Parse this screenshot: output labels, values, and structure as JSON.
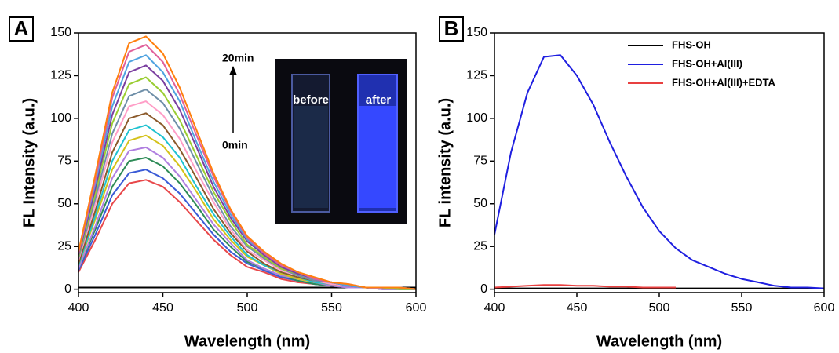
{
  "chart_data": [
    {
      "type": "line",
      "panel_label": "A",
      "xlabel": "Wavelength (nm)",
      "ylabel": "FL Intensity (a.u.)",
      "x": [
        400,
        410,
        420,
        430,
        440,
        450,
        460,
        470,
        480,
        490,
        500,
        510,
        520,
        530,
        540,
        550,
        560,
        570,
        580,
        590,
        600
      ],
      "xlim": [
        400,
        600
      ],
      "xticks": [
        400,
        450,
        500,
        550,
        600
      ],
      "ylim": [
        -2,
        150
      ],
      "yticks": [
        0,
        25,
        50,
        75,
        100,
        125,
        150
      ],
      "annotations": {
        "top": "20min",
        "bottom": "0min"
      },
      "inset_labels": [
        "before",
        "after"
      ],
      "series": [
        {
          "color": "#000000",
          "values": [
            1,
            1,
            1,
            1,
            1,
            1,
            1,
            1,
            1,
            1,
            1,
            1,
            1,
            1,
            1,
            1,
            1,
            1,
            1,
            1,
            1
          ]
        },
        {
          "color": "#e8474a",
          "values": [
            10,
            29,
            50,
            62,
            64,
            60,
            51,
            40,
            29,
            20,
            13,
            10,
            6,
            4,
            3,
            2,
            1,
            1,
            0,
            0,
            0
          ]
        },
        {
          "color": "#3b5bd6",
          "values": [
            11,
            32,
            55,
            68,
            70,
            65,
            56,
            44,
            32,
            22,
            15,
            11,
            7,
            5,
            3,
            2,
            1,
            1,
            0,
            0,
            0
          ]
        },
        {
          "color": "#2e8b57",
          "values": [
            12,
            35,
            60,
            75,
            77,
            72,
            62,
            49,
            35,
            25,
            16,
            12,
            8,
            5,
            3,
            2,
            1,
            1,
            0,
            0,
            0
          ]
        },
        {
          "color": "#b07fe0",
          "values": [
            12,
            37,
            65,
            81,
            83,
            77,
            66,
            52,
            38,
            27,
            17,
            12,
            8,
            6,
            4,
            2,
            1,
            1,
            0,
            0,
            0
          ]
        },
        {
          "color": "#d4c21a",
          "values": [
            14,
            41,
            70,
            87,
            90,
            84,
            72,
            57,
            41,
            29,
            19,
            14,
            9,
            6,
            4,
            3,
            2,
            1,
            1,
            0,
            0
          ]
        },
        {
          "color": "#1fc2d0",
          "values": [
            14,
            43,
            75,
            93,
            96,
            89,
            77,
            60,
            44,
            31,
            20,
            14,
            10,
            7,
            4,
            3,
            2,
            1,
            1,
            0,
            0
          ]
        },
        {
          "color": "#8b5a2b",
          "values": [
            15,
            46,
            80,
            100,
            103,
            96,
            82,
            65,
            47,
            33,
            22,
            15,
            10,
            7,
            5,
            3,
            2,
            1,
            1,
            0,
            0
          ]
        },
        {
          "color": "#ff9ec7",
          "values": [
            17,
            50,
            86,
            107,
            110,
            102,
            88,
            69,
            51,
            35,
            23,
            17,
            11,
            8,
            5,
            3,
            2,
            1,
            1,
            0,
            0
          ]
        },
        {
          "color": "#6f8fa8",
          "values": [
            18,
            53,
            91,
            113,
            117,
            109,
            94,
            74,
            54,
            37,
            25,
            18,
            12,
            8,
            5,
            4,
            2,
            1,
            1,
            0,
            0
          ]
        },
        {
          "color": "#9acd32",
          "values": [
            19,
            56,
            97,
            120,
            124,
            115,
            99,
            78,
            57,
            40,
            26,
            19,
            12,
            9,
            6,
            4,
            2,
            1,
            1,
            0,
            0
          ]
        },
        {
          "color": "#7b3fa0",
          "values": [
            20,
            59,
            102,
            127,
            131,
            122,
            105,
            83,
            60,
            42,
            28,
            20,
            13,
            9,
            6,
            4,
            2,
            1,
            1,
            1,
            0
          ]
        },
        {
          "color": "#4fa3e0",
          "values": [
            21,
            62,
            107,
            133,
            137,
            127,
            110,
            86,
            63,
            44,
            29,
            21,
            14,
            10,
            6,
            4,
            2,
            1,
            1,
            1,
            0
          ]
        },
        {
          "color": "#e05f9a",
          "values": [
            21,
            64,
            112,
            139,
            143,
            133,
            114,
            90,
            66,
            46,
            30,
            21,
            14,
            10,
            6,
            4,
            3,
            1,
            1,
            1,
            0
          ]
        },
        {
          "color": "#ff7f0e",
          "values": [
            22,
            67,
            115,
            144,
            148,
            138,
            118,
            93,
            68,
            47,
            31,
            22,
            15,
            10,
            7,
            4,
            3,
            1,
            1,
            1,
            0
          ]
        }
      ]
    },
    {
      "type": "line",
      "panel_label": "B",
      "xlabel": "Wavelength (nm)",
      "ylabel": "FL intensity (a.u.)",
      "x": [
        400,
        410,
        420,
        430,
        440,
        450,
        460,
        470,
        480,
        490,
        500,
        510,
        520,
        530,
        540,
        550,
        560,
        570,
        580,
        590,
        600
      ],
      "xlim": [
        400,
        600
      ],
      "xticks": [
        400,
        450,
        500,
        550,
        600
      ],
      "ylim": [
        -2,
        150
      ],
      "yticks": [
        0,
        25,
        50,
        75,
        100,
        125,
        150
      ],
      "series": [
        {
          "name": "FHS-OH",
          "color": "#000000",
          "values": [
            0.5,
            0.5,
            0.5,
            0.5,
            0.5,
            0.5,
            0.5,
            0.5,
            0.5,
            0.5,
            0.5,
            0.5,
            0.5,
            0.5,
            0.5,
            0.5,
            0.5,
            0.5,
            0.5,
            0.5,
            0.5
          ]
        },
        {
          "name": "FHS-OH+Al(III)",
          "color": "#1f1fe0",
          "values": [
            32,
            80,
            115,
            136,
            137,
            125,
            108,
            86,
            66,
            48,
            34,
            24,
            17,
            13,
            9,
            6,
            4,
            2,
            1,
            1,
            0.5
          ]
        },
        {
          "name": "FHS-OH+Al(III)+EDTA",
          "color": "#e84040",
          "values": [
            1,
            1.5,
            2,
            2.5,
            2.5,
            2,
            2,
            1.5,
            1.5,
            1,
            1,
            1,
            null,
            null,
            null,
            null,
            null,
            null,
            null,
            null,
            null
          ]
        }
      ]
    }
  ]
}
